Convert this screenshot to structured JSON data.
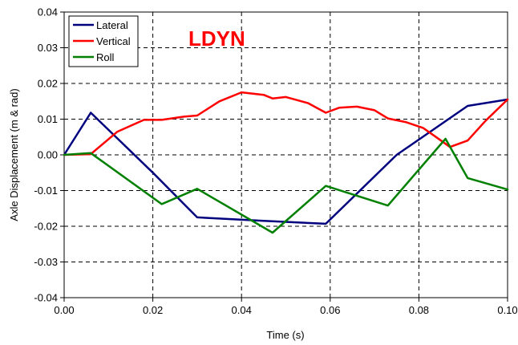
{
  "chart_data": {
    "type": "line",
    "title": "",
    "annotation": "LDYN",
    "xlabel": "Time (s)",
    "ylabel": "Axle Displacement (m & rad)",
    "xlim": [
      0,
      0.1
    ],
    "ylim": [
      -0.04,
      0.04
    ],
    "x_ticks": [
      "0.00",
      "0.02",
      "0.04",
      "0.06",
      "0.08",
      "0.10"
    ],
    "y_ticks": [
      "0.04",
      "0.03",
      "0.02",
      "0.01",
      "0.00",
      "-0.01",
      "-0.02",
      "-0.03",
      "-0.04"
    ],
    "x_tick_values": [
      0,
      0.02,
      0.04,
      0.06,
      0.08,
      0.1
    ],
    "y_tick_values": [
      0.04,
      0.03,
      0.02,
      0.01,
      0,
      -0.01,
      -0.02,
      -0.03,
      -0.04
    ],
    "grid": true,
    "legend_position": "top-left",
    "series": [
      {
        "name": "Lateral",
        "color": "#00007f",
        "x": [
          0,
          0.006,
          0.02,
          0.03,
          0.045,
          0.059,
          0.075,
          0.091,
          0.1
        ],
        "y": [
          0,
          0.0118,
          -0.005,
          -0.0175,
          -0.0185,
          -0.0193,
          0,
          0.0137,
          0.0155
        ]
      },
      {
        "name": "Vertical",
        "color": "#ff0000",
        "x": [
          0,
          0.006,
          0.012,
          0.018,
          0.022,
          0.027,
          0.03,
          0.035,
          0.04,
          0.045,
          0.047,
          0.05,
          0.055,
          0.059,
          0.062,
          0.066,
          0.07,
          0.073,
          0.077,
          0.081,
          0.085,
          0.087,
          0.091,
          0.095,
          0.1
        ],
        "y": [
          0,
          0.0002,
          0.0065,
          0.0098,
          0.0098,
          0.0107,
          0.011,
          0.015,
          0.0175,
          0.0168,
          0.0158,
          0.0162,
          0.0145,
          0.0118,
          0.0132,
          0.0135,
          0.0125,
          0.0102,
          0.0092,
          0.0075,
          0.004,
          0.0022,
          0.004,
          0.0095,
          0.0155
        ]
      },
      {
        "name": "Roll",
        "color": "#008000",
        "x": [
          0,
          0.006,
          0.022,
          0.03,
          0.047,
          0.059,
          0.073,
          0.086,
          0.091,
          0.1
        ],
        "y": [
          0,
          0.0005,
          -0.0138,
          -0.0095,
          -0.0218,
          -0.0087,
          -0.0142,
          0.0045,
          -0.0065,
          -0.0097
        ]
      }
    ]
  }
}
